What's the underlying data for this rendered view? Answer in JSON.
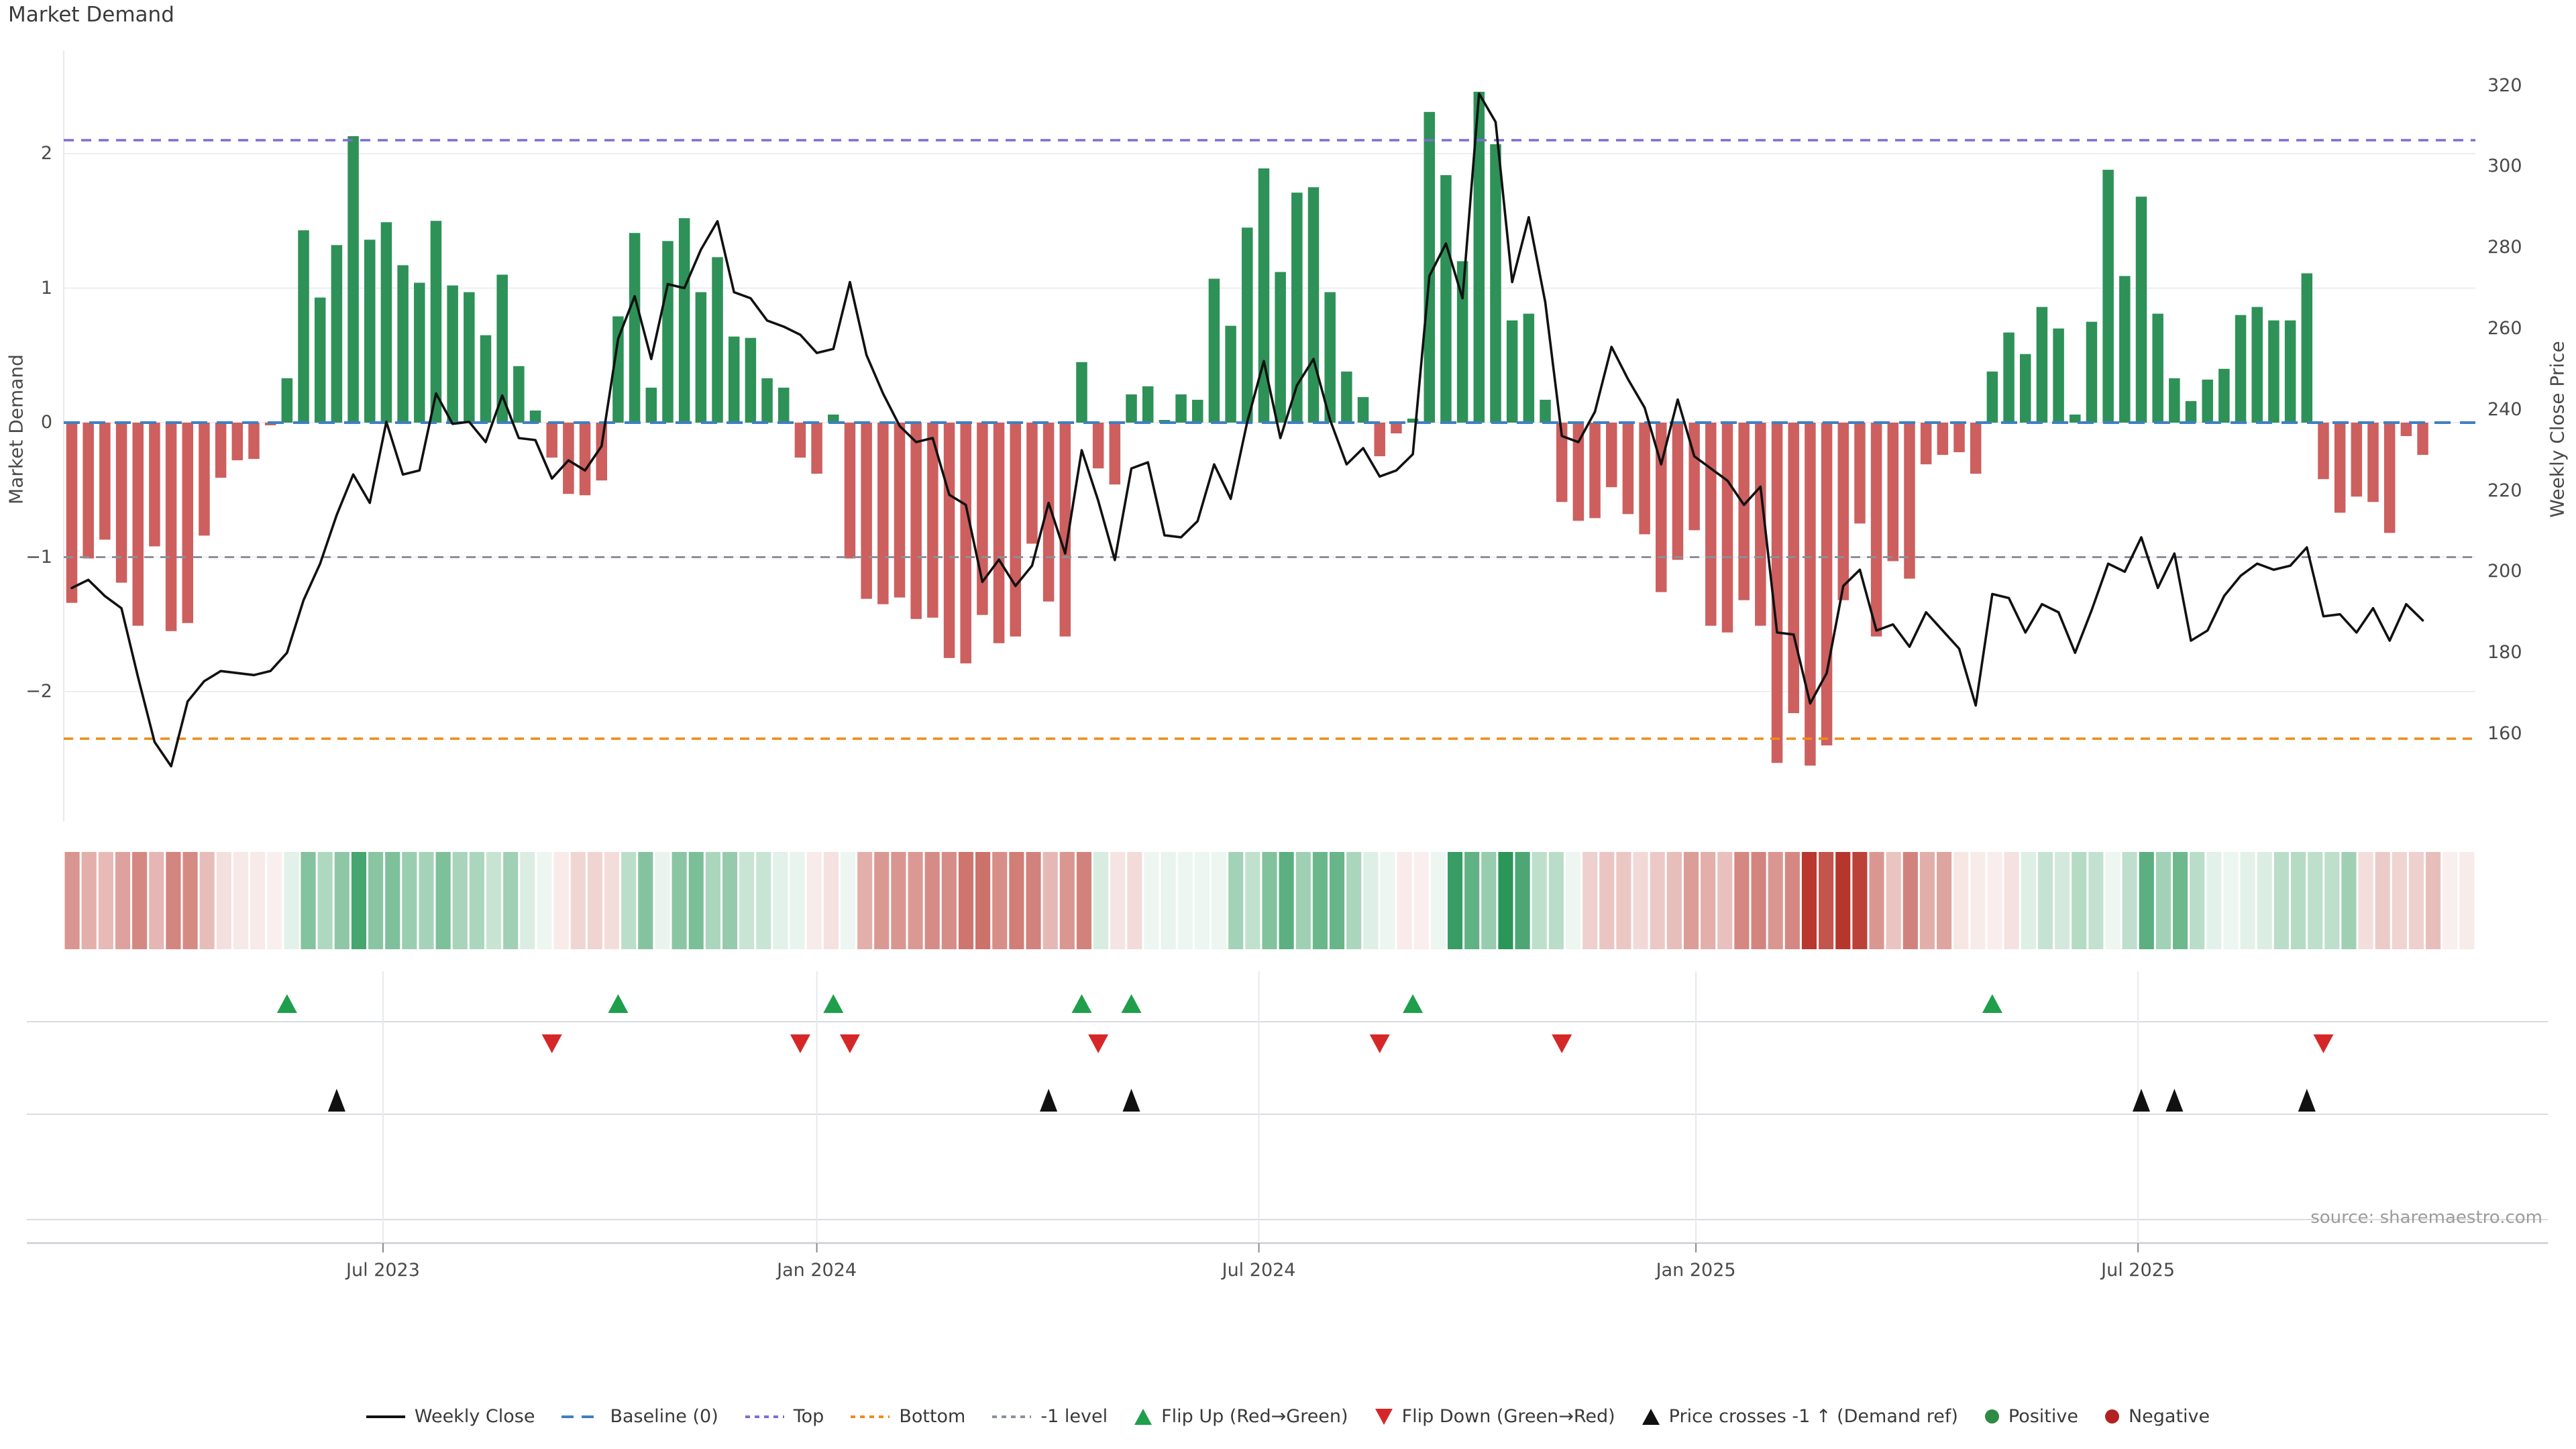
{
  "title": "Market Demand",
  "source": "source: sharemaestro.com",
  "axes": {
    "left_label": "Market Demand",
    "right_label": "Weekly Close Price",
    "left_ticks": [
      2,
      1,
      0,
      -1,
      -2
    ],
    "right_ticks": [
      320,
      300,
      280,
      260,
      240,
      220,
      200,
      180,
      160
    ],
    "x_ticks": [
      {
        "label": "Jul 2023",
        "week": 19.3
      },
      {
        "label": "Jan 2024",
        "week": 45.5
      },
      {
        "label": "Jul 2024",
        "week": 72.2
      },
      {
        "label": "Jan 2025",
        "week": 98.6
      },
      {
        "label": "Jul 2025",
        "week": 125.3
      }
    ]
  },
  "colors": {
    "bar_positive": "#2e9158",
    "bar_negative": "#cd5f5f",
    "price_line": "#111111",
    "baseline": "#3f7fc1",
    "top_line": "#7b6fd0",
    "bottom_line": "#ef8b17",
    "minus1_line": "#8b909a",
    "heat_positive_max": "#1e9150",
    "heat_negative_max": "#b63228",
    "flip_up": "#1f9e4b",
    "flip_down": "#d62728",
    "price_cross": "#111111",
    "positive_dot": "#2e8b44",
    "negative_dot": "#b22222",
    "grid": "#ededf3",
    "band_line": "#d8dce1",
    "axis_line": "#c9ced3",
    "date_grid": "#e6e9ed",
    "spine": "#e8e8ef"
  },
  "legend": [
    {
      "label": "Weekly Close",
      "swatch": "line",
      "color_key": "price_line"
    },
    {
      "label": "Baseline (0)",
      "swatch": "dashed",
      "color_key": "baseline"
    },
    {
      "label": "Top",
      "swatch": "dotted",
      "color_key": "top_line"
    },
    {
      "label": "Bottom",
      "swatch": "dotted",
      "color_key": "bottom_line"
    },
    {
      "label": "-1 level",
      "swatch": "dotted",
      "color_key": "minus1_line"
    },
    {
      "label": "Flip Up (Red→Green)",
      "swatch": "tri_up",
      "color_key": "flip_up"
    },
    {
      "label": "Flip Down (Green→Red)",
      "swatch": "tri_down",
      "color_key": "flip_down"
    },
    {
      "label": "Price crosses -1 ↑ (Demand ref)",
      "swatch": "tri_up",
      "color_key": "price_cross"
    },
    {
      "label": "Positive",
      "swatch": "circle",
      "color_key": "positive_dot"
    },
    {
      "label": "Negative",
      "swatch": "circle",
      "color_key": "negative_dot"
    }
  ],
  "chart_data": {
    "type": "combo",
    "description": "Weekly Market Demand bars (left axis) with Weekly Close Price line (right axis), heatmap strip of demand values, and event marker rows (flip up, flip down, price crosses -1).",
    "n_weeks": 143,
    "demand_axis": {
      "label": "Market Demand",
      "ticks": [
        2,
        1,
        0,
        -1,
        -2
      ],
      "range": [
        -2.95,
        2.78
      ]
    },
    "price_axis": {
      "label": "Weekly Close Price",
      "ticks": [
        320,
        300,
        280,
        260,
        240,
        220,
        200,
        180,
        160
      ],
      "range": [
        138,
        329
      ]
    },
    "grid": "horizontal at integer demand levels",
    "legend_position": "bottom center",
    "demand": [
      -1.34,
      -1.01,
      -0.87,
      -1.19,
      -1.51,
      -0.92,
      -1.55,
      -1.49,
      -0.84,
      -0.41,
      -0.28,
      -0.27,
      -0.02,
      0.33,
      1.43,
      0.93,
      1.32,
      2.13,
      1.36,
      1.49,
      1.17,
      1.04,
      1.5,
      1.02,
      0.97,
      0.65,
      1.1,
      0.42,
      0.09,
      -0.26,
      -0.53,
      -0.54,
      -0.43,
      0.79,
      1.41,
      0.26,
      1.35,
      1.52,
      0.97,
      1.23,
      0.64,
      0.63,
      0.33,
      0.26,
      -0.26,
      -0.38,
      0.06,
      -1.01,
      -1.31,
      -1.35,
      -1.3,
      -1.46,
      -1.45,
      -1.75,
      -1.79,
      -1.43,
      -1.64,
      -1.59,
      -0.9,
      -1.33,
      -1.59,
      0.45,
      -0.34,
      -0.46,
      0.21,
      0.27,
      0.02,
      0.21,
      0.17,
      1.07,
      0.72,
      1.45,
      1.89,
      1.12,
      1.71,
      1.75,
      0.97,
      0.38,
      0.19,
      -0.25,
      -0.08,
      0.03,
      2.31,
      1.84,
      1.2,
      2.46,
      2.07,
      0.76,
      0.81,
      0.17,
      -0.59,
      -0.73,
      -0.71,
      -0.48,
      -0.68,
      -0.83,
      -1.26,
      -1.02,
      -0.8,
      -1.51,
      -1.56,
      -1.32,
      -1.51,
      -2.53,
      -2.16,
      -2.55,
      -2.4,
      -1.32,
      -0.75,
      -1.59,
      -1.03,
      -1.16,
      -0.31,
      -0.24,
      -0.22,
      -0.38,
      0.38,
      0.67,
      0.51,
      0.86,
      0.7,
      0.06,
      0.75,
      1.88,
      1.09,
      1.68,
      0.81,
      0.33,
      0.16,
      0.32,
      0.4,
      0.8,
      0.86,
      0.76,
      0.76,
      1.11,
      -0.42,
      -0.67,
      -0.55,
      -0.59,
      -0.82,
      -0.1,
      -0.24
    ],
    "price": [
      196,
      198,
      194,
      191,
      174,
      158,
      152,
      168,
      173,
      175.5,
      175,
      174.5,
      175.5,
      180,
      193,
      202,
      214,
      224,
      217,
      237,
      224,
      225,
      244,
      236.5,
      237,
      232,
      243.5,
      233,
      232.5,
      223,
      227.5,
      225,
      231,
      257.5,
      268,
      252.5,
      271,
      270,
      279.5,
      286.5,
      269,
      267.5,
      262,
      260.5,
      258.5,
      254,
      255,
      271.5,
      253.5,
      244,
      236,
      232,
      233,
      219,
      216.5,
      197.5,
      203,
      196.5,
      201.5,
      217,
      204.5,
      230,
      217.5,
      202.9,
      225.5,
      227,
      209,
      208.5,
      212.5,
      226.5,
      218,
      237,
      252,
      233,
      246,
      252.5,
      237.5,
      226.5,
      230.5,
      223.5,
      225,
      229,
      273,
      281,
      267.5,
      318,
      311,
      271.5,
      287.5,
      266.5,
      233.5,
      232,
      239.5,
      255.5,
      247.5,
      240.5,
      226.5,
      242.5,
      228.5,
      225.5,
      222.5,
      216.5,
      221,
      185,
      184.5,
      167.5,
      175,
      196.5,
      200.5,
      185.5,
      187,
      181.5,
      190,
      185.5,
      181,
      167,
      194.5,
      193.5,
      185,
      192,
      190,
      180,
      190.5,
      202,
      200,
      208.5,
      196,
      204.5,
      183,
      185.5,
      194,
      199,
      202,
      200.5,
      201.5,
      206,
      189,
      189.5,
      185,
      191,
      183,
      192,
      188
    ],
    "reference_lines": [
      {
        "name": "Baseline (0)",
        "value": 0,
        "axis": "demand",
        "style": "dashed",
        "color_key": "baseline"
      },
      {
        "name": "Top",
        "value": 2.1,
        "axis": "demand",
        "style": "dotted",
        "color_key": "top_line"
      },
      {
        "name": "Bottom",
        "value": -2.35,
        "axis": "demand",
        "style": "dotted",
        "color_key": "bottom_line"
      },
      {
        "name": "-1 level",
        "value": -1,
        "axis": "demand",
        "style": "dotted",
        "color_key": "minus1_line"
      }
    ],
    "markers": {
      "flip_up": {
        "meaning": "demand flips red to green",
        "weeks": [
          13,
          33,
          46,
          61,
          64,
          81,
          116
        ]
      },
      "flip_down": {
        "meaning": "demand flips green to red",
        "weeks": [
          29,
          44,
          47,
          62,
          79,
          90,
          136
        ]
      },
      "price_cross": {
        "meaning": "price crosses -1 demand level upward",
        "weeks": [
          16,
          59,
          64,
          125,
          127,
          135
        ]
      }
    },
    "heatmap": {
      "meaning": "one cell per week, red shades for negative demand, green shades for positive demand, intensity proportional to magnitude",
      "values_ref": "demand"
    }
  }
}
